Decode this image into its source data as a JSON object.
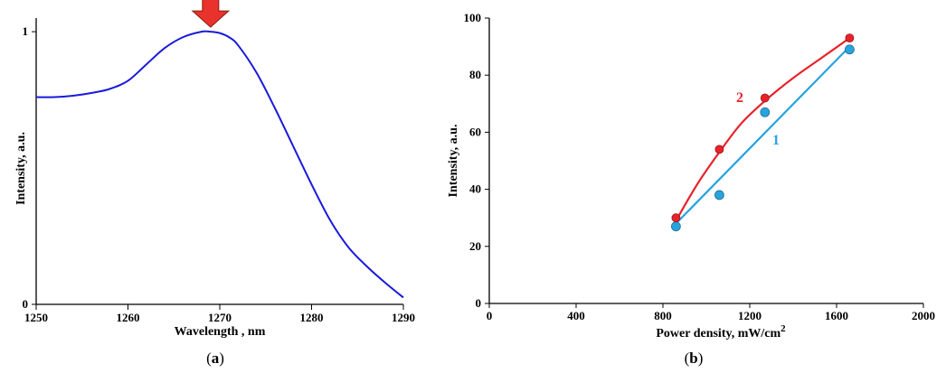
{
  "chart_data": [
    {
      "type": "line",
      "panel_label": "a",
      "xlabel": "Wavelength , nm",
      "ylabel": "Intensity, a.u.",
      "xlim": [
        1250,
        1290
      ],
      "ylim": [
        0,
        1.05
      ],
      "xticks": [
        "1250",
        "1260",
        "1270",
        "1280",
        "1290"
      ],
      "yticks": [
        "0",
        "1"
      ],
      "line_color": "#1a1adb",
      "marker_color": "#e8322b",
      "marker": {
        "type": "down-arrow",
        "x": 1269
      },
      "series": [
        {
          "x": [
            1250,
            1252,
            1254,
            1256,
            1258,
            1260,
            1262,
            1264,
            1266,
            1268,
            1269,
            1270,
            1271,
            1272,
            1274,
            1276,
            1278,
            1280,
            1282,
            1284,
            1286,
            1288,
            1290
          ],
          "values": [
            0.76,
            0.76,
            0.765,
            0.775,
            0.79,
            0.82,
            0.88,
            0.94,
            0.98,
            1.0,
            1.0,
            0.995,
            0.98,
            0.95,
            0.85,
            0.72,
            0.58,
            0.44,
            0.31,
            0.21,
            0.14,
            0.08,
            0.025
          ]
        }
      ]
    },
    {
      "type": "scatter",
      "panel_label": "b",
      "xlabel": "Power density, mW/cm",
      "xlabel_sup": "2",
      "ylabel": "Intensity, a.u.",
      "xlim": [
        0,
        2000
      ],
      "ylim": [
        0,
        100
      ],
      "xticks": [
        "0",
        "400",
        "800",
        "1200",
        "1600",
        "2000"
      ],
      "yticks": [
        "0",
        "20",
        "40",
        "60",
        "80",
        "100"
      ],
      "series": [
        {
          "name": "1",
          "color": "#29a3dd",
          "x": [
            860,
            1060,
            1270,
            1660
          ],
          "values": [
            27,
            38,
            67,
            89
          ],
          "fit": {
            "type": "linear",
            "x": [
              860,
              1660
            ],
            "values": [
              28,
              90
            ]
          }
        },
        {
          "name": "2",
          "color": "#e8222b",
          "x": [
            860,
            1060,
            1270,
            1660
          ],
          "values": [
            30,
            54,
            72,
            93
          ],
          "fit": {
            "type": "curve",
            "x": [
              860,
              960,
              1060,
              1160,
              1270,
              1400,
              1530,
              1660
            ],
            "values": [
              29,
              42,
              53,
              63,
              71,
              79,
              86,
              93
            ]
          }
        }
      ]
    }
  ]
}
